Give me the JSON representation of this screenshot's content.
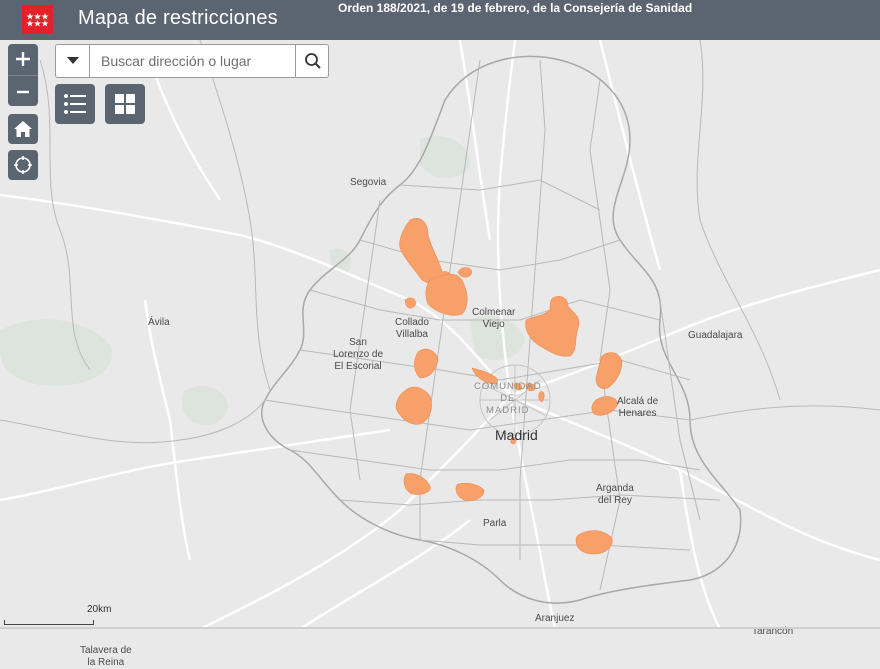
{
  "header": {
    "title": "Mapa de restricciones",
    "subtitle": "Orden 188/2021, de 19 de febrero, de la Consejería de Sanidad",
    "logo_icon": "comunidad-madrid-flag-logo"
  },
  "colors": {
    "header_bg": "#5b6571",
    "logo_red": "#e5202a",
    "restriction_zone": "#f8a06a",
    "map_bg": "#e9e9e9",
    "roads": "#ffffff",
    "boundaries": "#b9b9b9"
  },
  "controls": {
    "zoom_in_icon": "plus-icon",
    "zoom_out_icon": "minus-icon",
    "home_icon": "home-icon",
    "locate_icon": "locate-icon",
    "legend_icon": "list-icon",
    "basemap_icon": "grid-icon",
    "search_placeholder": "Buscar dirección o lugar",
    "search_icon": "search-icon",
    "dropdown_icon": "caret-down-icon"
  },
  "map": {
    "places": {
      "segovia": "Segovia",
      "avila": "Ávila",
      "collado": "Collado\nVillalba",
      "colmenar": "Colmenar\nViejo",
      "san_lorenzo": "San\nLorenzo de\nEl Escorial",
      "comunidad": "COMUNIDAD\nDE\nMADRID",
      "madrid": "Madrid",
      "alcala": "Alcalá de\nHenares",
      "guadalajara": "Guadalajara",
      "arganda": "Arganda\ndel Rey",
      "parla": "Parla",
      "aranjuez": "Aranjuez",
      "tarancon": "Tarancón",
      "talavera": "Talavera de\nla Reina"
    },
    "scale_label": "20km"
  }
}
